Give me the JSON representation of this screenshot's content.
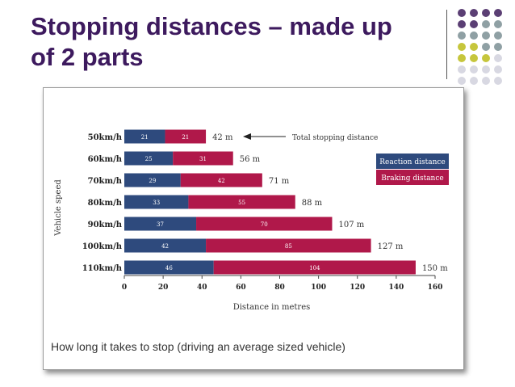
{
  "slide": {
    "title_line1": "Stopping distances – made up",
    "title_line2": "of 2 parts"
  },
  "decoration": {
    "dot_colors": [
      "#5b3f74",
      "#8fa0a4",
      "#c6c63c",
      "#d8d8e2"
    ]
  },
  "chart_data": {
    "type": "bar",
    "orientation": "horizontal",
    "stacked": true,
    "categories": [
      "50km/h",
      "60km/h",
      "70km/h",
      "80km/h",
      "90km/h",
      "100km/h",
      "110km/h"
    ],
    "series": [
      {
        "name": "Reaction distance",
        "color": "#2e4a7d",
        "values": [
          21,
          25,
          29,
          33,
          37,
          42,
          46
        ]
      },
      {
        "name": "Braking distance",
        "color": "#b0184a",
        "values": [
          21,
          31,
          42,
          55,
          70,
          85,
          104
        ]
      }
    ],
    "total_labels": [
      "42 m",
      "56 m",
      "71 m",
      "88 m",
      "107 m",
      "127 m",
      "150 m"
    ],
    "annotation": "Total stopping distance",
    "xlabel": "Distance in metres",
    "ylabel": "Vehicle speed",
    "xlim": [
      0,
      160
    ],
    "xticks": [
      0,
      20,
      40,
      60,
      80,
      100,
      120,
      140,
      160
    ],
    "grid": false,
    "legend_position": "right",
    "caption": "How long it takes to stop (driving an average sized vehicle)"
  }
}
